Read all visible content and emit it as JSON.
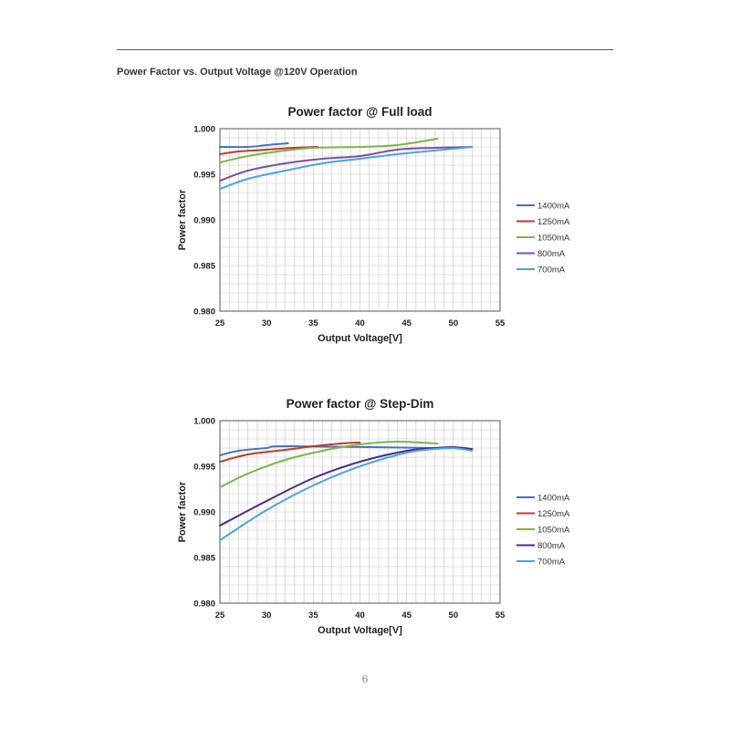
{
  "page": {
    "section_title": "Power Factor vs. Output Voltage @120V Operation",
    "page_number": "6"
  },
  "chart_data": [
    {
      "type": "line",
      "title": "Power factor @ Full load",
      "xlabel": "Output Voltage[V]",
      "ylabel": "Power factor",
      "xlim": [
        25,
        55
      ],
      "ylim": [
        0.98,
        1.0
      ],
      "xticks": [
        "25",
        "30",
        "35",
        "40",
        "45",
        "50",
        "55"
      ],
      "yticks": [
        "0.980",
        "0.985",
        "0.990",
        "0.995",
        "1.000"
      ],
      "grid": true,
      "legend_position": "right",
      "series": [
        {
          "name": "1400mA",
          "color": "#4472c4",
          "x": [
            25,
            28,
            30,
            32.3
          ],
          "y": [
            0.998,
            0.998,
            0.9982,
            0.9984
          ]
        },
        {
          "name": "1250mA",
          "color": "#c0392b",
          "x": [
            25,
            27,
            30,
            33,
            35.5
          ],
          "y": [
            0.9972,
            0.9975,
            0.9977,
            0.9979,
            0.998
          ]
        },
        {
          "name": "1050mA",
          "color": "#7ab648",
          "x": [
            25,
            28,
            32,
            35,
            40,
            44,
            48.3
          ],
          "y": [
            0.9963,
            0.997,
            0.9976,
            0.9979,
            0.998,
            0.9982,
            0.9989
          ]
        },
        {
          "name": "800mA",
          "color": "#7b4fa8",
          "x": [
            25,
            28,
            32,
            36,
            40,
            44,
            48,
            52
          ],
          "y": [
            0.9943,
            0.9954,
            0.9962,
            0.9967,
            0.997,
            0.9977,
            0.9979,
            0.998
          ]
        },
        {
          "name": "700mA",
          "color": "#4aa3df",
          "x": [
            25,
            28,
            32,
            36,
            40,
            44,
            48,
            52
          ],
          "y": [
            0.9934,
            0.9945,
            0.9954,
            0.9962,
            0.9967,
            0.9972,
            0.9976,
            0.998
          ]
        }
      ]
    },
    {
      "type": "line",
      "title": "Power factor @ Step-Dim",
      "xlabel": "Output Voltage[V]",
      "ylabel": "Power factor",
      "xlim": [
        25,
        55
      ],
      "ylim": [
        0.98,
        1.0
      ],
      "xticks": [
        "25",
        "30",
        "35",
        "40",
        "45",
        "50",
        "55"
      ],
      "yticks": [
        "0.980",
        "0.985",
        "0.990",
        "0.995",
        "1.000"
      ],
      "grid": true,
      "legend_position": "right",
      "series": [
        {
          "name": "1400mA",
          "color": "#4472c4",
          "x": [
            25,
            27,
            30,
            32.3,
            48,
            50,
            52
          ],
          "y": [
            0.9962,
            0.9967,
            0.997,
            0.9972,
            0.997,
            0.997,
            0.9969
          ]
        },
        {
          "name": "1250mA",
          "color": "#c0392b",
          "x": [
            25,
            28,
            32,
            35,
            38,
            40
          ],
          "y": [
            0.9955,
            0.9963,
            0.9968,
            0.9972,
            0.9975,
            0.9976
          ]
        },
        {
          "name": "1050mA",
          "color": "#7ab648",
          "x": [
            25,
            28,
            32,
            36,
            40,
            44,
            48.3
          ],
          "y": [
            0.9927,
            0.9942,
            0.9957,
            0.9967,
            0.9974,
            0.9977,
            0.9975
          ]
        },
        {
          "name": "800mA",
          "color": "#4b2a8c",
          "x": [
            25,
            30,
            35,
            40,
            45,
            48,
            50,
            52
          ],
          "y": [
            0.9885,
            0.9912,
            0.9937,
            0.9955,
            0.9967,
            0.997,
            0.9971,
            0.9969
          ]
        },
        {
          "name": "700mA",
          "color": "#4aa3df",
          "x": [
            25,
            30,
            35,
            40,
            45,
            48,
            50,
            52
          ],
          "y": [
            0.9869,
            0.9902,
            0.9929,
            0.995,
            0.9965,
            0.9969,
            0.997,
            0.9967
          ]
        }
      ]
    }
  ]
}
